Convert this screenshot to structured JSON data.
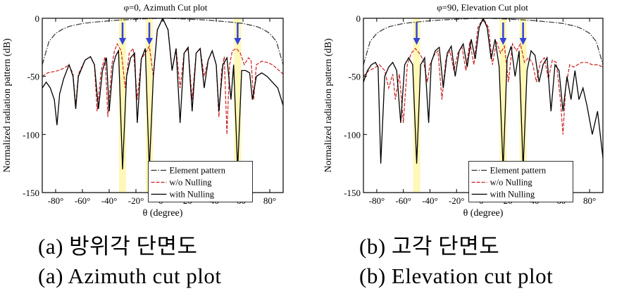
{
  "chart_data": [
    {
      "type": "line",
      "title": "φ=0, Azimuth Cut plot",
      "xlabel": "θ (degree)",
      "ylabel": "Normalized radiation pattern (dB)",
      "xlim": [
        -90,
        90
      ],
      "ylim": [
        -150,
        0
      ],
      "xticks": [
        -80,
        -60,
        -40,
        -20,
        0,
        20,
        40,
        60,
        80
      ],
      "xtick_labels": [
        "-80°",
        "-60°",
        "-40°",
        "-20°",
        "0°",
        "20°",
        "40°",
        "60°",
        "80°"
      ],
      "yticks": [
        0,
        -50,
        -100,
        -150
      ],
      "ytick_labels": [
        "0",
        "-50",
        "-100",
        "-150"
      ],
      "grid": false,
      "legend": "bottom-center",
      "null_directions": [
        -30,
        -10,
        56
      ],
      "series": [
        {
          "name": "Element pattern",
          "color": "#333333",
          "style": "dashdot",
          "x": [
            -90,
            -85,
            -80,
            -75,
            -70,
            -60,
            -50,
            -40,
            -30,
            -20,
            -10,
            0,
            10,
            20,
            30,
            40,
            50,
            60,
            70,
            75,
            80,
            85,
            90
          ],
          "y": [
            -40,
            -20,
            -13,
            -9.5,
            -7,
            -4.5,
            -3.2,
            -2.2,
            -1.4,
            -0.8,
            -0.3,
            0,
            -0.3,
            -0.8,
            -1.4,
            -2.2,
            -3.2,
            -4.5,
            -7,
            -9.5,
            -13,
            -20,
            -40
          ]
        },
        {
          "name": "w/o Nulling",
          "color": "#cc2222",
          "style": "dashed",
          "x": [
            -90,
            -86,
            -82,
            -78,
            -74,
            -70,
            -67,
            -65,
            -63,
            -58,
            -54,
            -51,
            -49,
            -46,
            -43,
            -41,
            -38,
            -36,
            -34,
            -31,
            -28,
            -25,
            -22,
            -19,
            -16,
            -13,
            -10,
            -7,
            -4,
            0,
            4,
            7,
            10,
            13,
            16,
            19,
            22,
            25,
            28,
            31,
            34,
            37,
            40,
            42,
            44,
            46,
            48,
            50,
            52,
            55,
            58,
            61,
            64,
            66,
            68,
            70,
            74,
            78,
            82,
            86,
            90
          ],
          "y": [
            -50,
            -47,
            -46,
            -45,
            -43,
            -40,
            -48,
            -75,
            -48,
            -36,
            -33,
            -40,
            -80,
            -45,
            -33,
            -85,
            -40,
            -28,
            -22,
            -28,
            -60,
            -30,
            -26,
            -70,
            -35,
            -30,
            -24,
            -50,
            -10,
            0,
            -10,
            -45,
            -26,
            -60,
            -30,
            -26,
            -70,
            -30,
            -26,
            -50,
            -36,
            -28,
            -40,
            -85,
            -45,
            -33,
            -100,
            -40,
            -28,
            -26,
            -30,
            -40,
            -34,
            -36,
            -70,
            -40,
            -37,
            -38,
            -40,
            -44,
            -48
          ]
        },
        {
          "name": "with Nulling",
          "color": "#000000",
          "style": "solid",
          "x": [
            -90,
            -87,
            -84,
            -81,
            -79,
            -77,
            -74,
            -70,
            -67,
            -65,
            -63,
            -58,
            -54,
            -51,
            -48,
            -45,
            -42,
            -40,
            -37,
            -35,
            -33,
            -30,
            -27,
            -24,
            -21,
            -19,
            -16,
            -13,
            -10,
            -7,
            -4,
            0,
            4,
            7,
            10,
            13,
            16,
            19,
            22,
            25,
            28,
            31,
            34,
            37,
            40,
            42,
            45,
            48,
            51,
            53,
            56,
            59,
            62,
            65,
            67,
            70,
            74,
            78,
            82,
            86,
            90
          ],
          "y": [
            -60,
            -55,
            -60,
            -70,
            -92,
            -65,
            -52,
            -40,
            -50,
            -78,
            -50,
            -36,
            -33,
            -40,
            -78,
            -45,
            -34,
            -80,
            -40,
            -32,
            -28,
            -130,
            -50,
            -34,
            -30,
            -90,
            -35,
            -26,
            -130,
            -50,
            -10,
            0,
            -10,
            -45,
            -26,
            -90,
            -30,
            -25,
            -80,
            -30,
            -26,
            -60,
            -36,
            -28,
            -40,
            -80,
            -40,
            -34,
            -70,
            -40,
            -130,
            -45,
            -45,
            -47,
            -70,
            -50,
            -47,
            -50,
            -55,
            -60,
            -75
          ]
        }
      ]
    },
    {
      "type": "line",
      "title": "φ=90, Elevation Cut plot",
      "xlabel": "θ (degree)",
      "ylabel": "Normalized radiation pattern (dB)",
      "xlim": [
        -90,
        90
      ],
      "ylim": [
        -150,
        0
      ],
      "xticks": [
        -80,
        -60,
        -40,
        -20,
        0,
        20,
        40,
        60,
        80
      ],
      "xtick_labels": [
        "-80°",
        "-60°",
        "-40°",
        "-20°",
        "0°",
        "20°",
        "40°",
        "60°",
        "80°"
      ],
      "yticks": [
        0,
        -50,
        -100,
        -150
      ],
      "ytick_labels": [
        "0",
        "-50",
        "-100",
        "-150"
      ],
      "grid": false,
      "legend": "bottom-center",
      "null_directions": [
        -50,
        15,
        30
      ],
      "series": [
        {
          "name": "Element pattern",
          "color": "#333333",
          "style": "dashdot",
          "x": [
            -90,
            -85,
            -80,
            -75,
            -70,
            -60,
            -50,
            -40,
            -30,
            -20,
            -10,
            0,
            10,
            20,
            30,
            40,
            50,
            60,
            70,
            75,
            80,
            85,
            90
          ],
          "y": [
            -40,
            -20,
            -13,
            -9.5,
            -7,
            -4.5,
            -3.2,
            -2.2,
            -1.4,
            -0.8,
            -0.3,
            0,
            -0.3,
            -0.8,
            -1.4,
            -2.2,
            -3.2,
            -4.5,
            -7,
            -9.5,
            -13,
            -20,
            -40
          ]
        },
        {
          "name": "w/o Nulling",
          "color": "#cc2222",
          "style": "dashed",
          "x": [
            -90,
            -86,
            -82,
            -78,
            -74,
            -71,
            -68,
            -66,
            -63,
            -60,
            -57,
            -54,
            -51,
            -48,
            -45,
            -42,
            -40,
            -37,
            -34,
            -31,
            -28,
            -25,
            -22,
            -19,
            -16,
            -13,
            -10,
            -7,
            -4,
            0,
            4,
            7,
            10,
            13,
            16,
            19,
            22,
            25,
            28,
            31,
            34,
            37,
            40,
            43,
            46,
            49,
            52,
            55,
            58,
            60,
            62,
            65,
            68,
            71,
            74,
            78,
            82,
            86,
            90
          ],
          "y": [
            -50,
            -45,
            -43,
            -40,
            -45,
            -60,
            -48,
            -70,
            -48,
            -90,
            -40,
            -30,
            -26,
            -30,
            -36,
            -55,
            -40,
            -32,
            -28,
            -70,
            -35,
            -28,
            -45,
            -30,
            -24,
            -45,
            -20,
            -40,
            -8,
            0,
            -8,
            -40,
            -20,
            -30,
            -24,
            -55,
            -22,
            -28,
            -22,
            -38,
            -34,
            -38,
            -55,
            -38,
            -34,
            -52,
            -36,
            -38,
            -70,
            -100,
            -60,
            -40,
            -42,
            -40,
            -38,
            -38,
            -40,
            -40,
            -42
          ]
        },
        {
          "name": "with Nulling",
          "color": "#000000",
          "style": "solid",
          "x": [
            -90,
            -87,
            -84,
            -81,
            -79,
            -77,
            -74,
            -71,
            -68,
            -65,
            -62,
            -59,
            -56,
            -53,
            -50,
            -47,
            -44,
            -41,
            -39,
            -36,
            -33,
            -30,
            -27,
            -24,
            -21,
            -18,
            -15,
            -12,
            -9,
            -6,
            -3,
            0,
            3,
            6,
            9,
            12,
            15,
            18,
            21,
            24,
            27,
            30,
            33,
            36,
            39,
            42,
            45,
            48,
            51,
            54,
            57,
            60,
            63,
            66,
            69,
            72,
            75,
            78,
            82,
            86,
            90
          ],
          "y": [
            -55,
            -45,
            -40,
            -38,
            -42,
            -125,
            -50,
            -42,
            -38,
            -45,
            -90,
            -40,
            -34,
            -40,
            -125,
            -40,
            -34,
            -90,
            -38,
            -28,
            -25,
            -60,
            -30,
            -24,
            -50,
            -28,
            -22,
            -42,
            -18,
            -35,
            -8,
            0,
            -8,
            -35,
            -18,
            -42,
            -130,
            -35,
            -24,
            -50,
            -28,
            -130,
            -45,
            -28,
            -32,
            -55,
            -40,
            -34,
            -80,
            -40,
            -45,
            -80,
            -50,
            -70,
            -45,
            -70,
            -60,
            -75,
            -100,
            -80,
            -120
          ]
        }
      ]
    }
  ],
  "captions": {
    "left_korean": "(a)  방위각  단면도",
    "left_english": "(a)  Azimuth  cut  plot",
    "right_korean": "(b)  고각  단면도",
    "right_english": "(b)  Elevation  cut  plot"
  }
}
